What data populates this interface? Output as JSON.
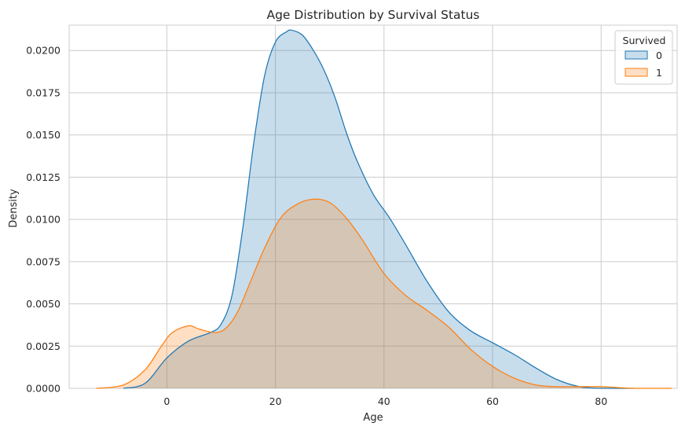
{
  "chart_data": {
    "type": "area",
    "title": "Age Distribution by Survival Status",
    "xlabel": "Age",
    "ylabel": "Density",
    "xlim": [
      -18,
      94
    ],
    "ylim": [
      0,
      0.0215
    ],
    "x_ticks": [
      0,
      20,
      40,
      60,
      80
    ],
    "x_tick_labels": [
      "0",
      "20",
      "40",
      "60",
      "80"
    ],
    "y_ticks": [
      0,
      0.0025,
      0.005,
      0.0075,
      0.01,
      0.0125,
      0.015,
      0.0175,
      0.02
    ],
    "y_tick_labels": [
      "0.0000",
      "0.0025",
      "0.0050",
      "0.0075",
      "0.0100",
      "0.0125",
      "0.0150",
      "0.0175",
      "0.0200"
    ],
    "grid": true,
    "legend": {
      "title": "Survived",
      "position": "top-right"
    },
    "series": [
      {
        "name": "0",
        "color": "#1f77b4",
        "fill": "#1f77b4",
        "x": [
          -8,
          -4,
          0,
          4,
          8,
          10,
          12,
          14,
          16,
          18,
          20,
          22,
          23,
          25,
          27,
          29,
          31,
          33,
          35,
          38,
          41,
          44,
          48,
          52,
          56,
          60,
          64,
          68,
          72,
          76,
          80,
          86
        ],
        "values": [
          0.0,
          0.0003,
          0.0018,
          0.0028,
          0.0033,
          0.0038,
          0.0055,
          0.0095,
          0.0145,
          0.0185,
          0.0205,
          0.0211,
          0.0212,
          0.0209,
          0.02,
          0.0188,
          0.0172,
          0.0152,
          0.0135,
          0.0115,
          0.0101,
          0.0085,
          0.0063,
          0.0045,
          0.0034,
          0.0027,
          0.002,
          0.0012,
          0.0005,
          0.0001,
          0.0,
          0.0
        ]
      },
      {
        "name": "1",
        "color": "#ff7f0e",
        "fill": "#ff7f0e",
        "x": [
          -13,
          -8,
          -4,
          -1,
          1,
          4,
          6,
          9,
          11,
          13,
          15,
          18,
          21,
          24,
          27,
          30,
          33,
          36,
          40,
          44,
          48,
          52,
          56,
          60,
          64,
          68,
          72,
          76,
          80,
          86,
          93
        ],
        "values": [
          0.0,
          0.0002,
          0.0011,
          0.0025,
          0.0033,
          0.0037,
          0.0035,
          0.0033,
          0.0036,
          0.0045,
          0.006,
          0.0083,
          0.0101,
          0.0109,
          0.0112,
          0.011,
          0.0101,
          0.0088,
          0.0068,
          0.0055,
          0.0046,
          0.0036,
          0.0023,
          0.0013,
          0.0006,
          0.0002,
          0.0001,
          0.0001,
          0.0001,
          0.0,
          0.0
        ]
      }
    ]
  }
}
